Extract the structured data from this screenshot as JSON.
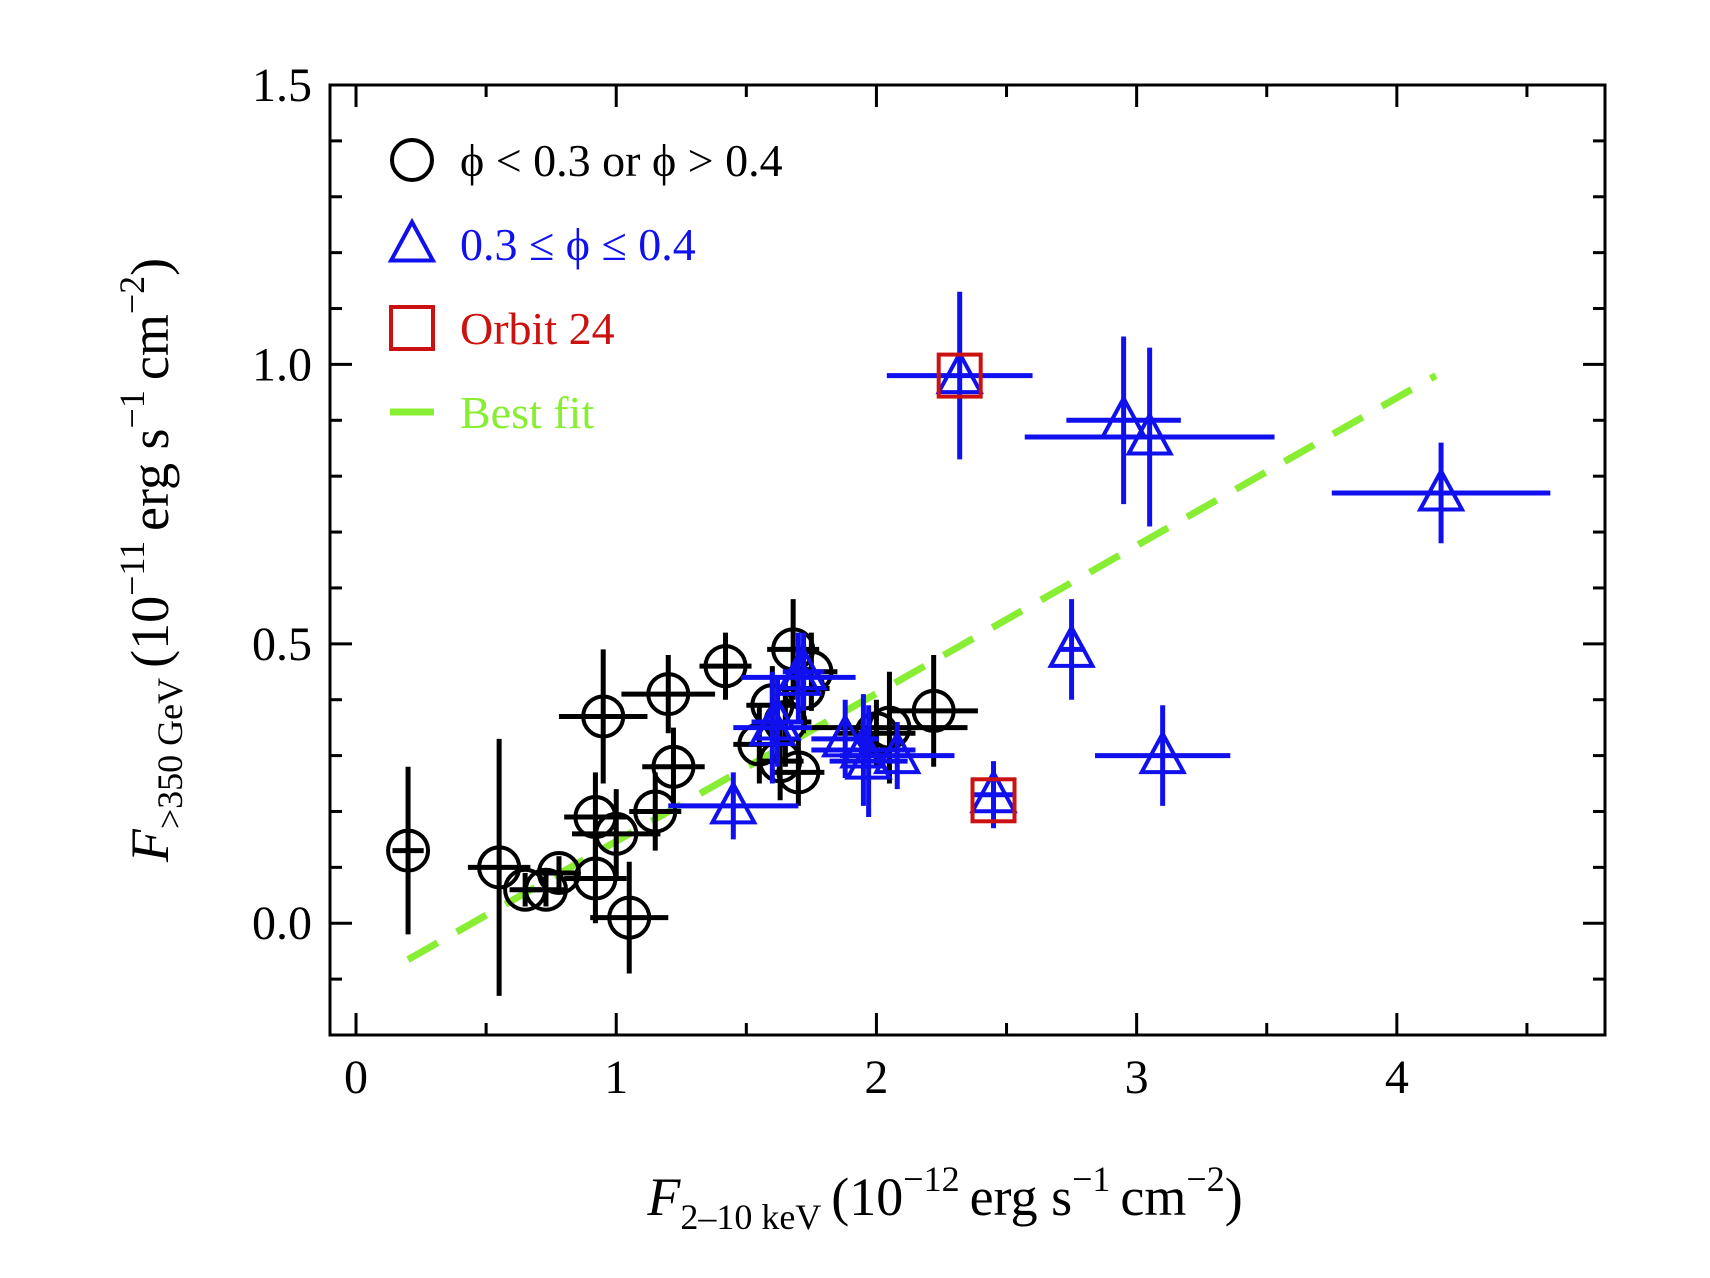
{
  "chart_data": {
    "type": "scatter",
    "xlabel": {
      "symbol": "F",
      "subscript": "2–10 keV",
      "units_prefix": "(10",
      "units_exp": "−12",
      "units_mid": "erg s",
      "units_exp2": "−1",
      "units_mid2": "cm",
      "units_exp3": "−2",
      "units_suffix": ")"
    },
    "ylabel": {
      "symbol": "F",
      "subscript": ">350 GeV",
      "units_prefix": "(10",
      "units_exp": "−11",
      "units_mid": "erg s",
      "units_exp2": "−1",
      "units_mid2": "cm",
      "units_exp3": "−2",
      "units_suffix": ")"
    },
    "xlim": [
      -0.1,
      4.8
    ],
    "ylim": [
      -0.2,
      1.5
    ],
    "xticks": [
      0,
      1,
      2,
      3,
      4
    ],
    "xtick_labels": [
      "0",
      "1",
      "2",
      "3",
      "4"
    ],
    "yticks": [
      0.0,
      0.5,
      1.0,
      1.5
    ],
    "ytick_labels": [
      "0.0",
      "0.5",
      "1.0",
      "1.5"
    ],
    "legend_position": "top-left",
    "legend": [
      {
        "marker": "circle",
        "color": "#000000",
        "text": "ϕ < 0.3 or ϕ > 0.4"
      },
      {
        "marker": "triangle",
        "color": "#1010ee",
        "text": "0.3 ≤ ϕ ≤ 0.4"
      },
      {
        "marker": "square",
        "color": "#cc1111",
        "text": "Orbit 24"
      },
      {
        "marker": "dash",
        "color": "#88ee33",
        "text": "Best fit"
      }
    ],
    "series": [
      {
        "name": "ϕ < 0.3 or ϕ > 0.4",
        "marker": "circle",
        "color": "#000000",
        "points": [
          {
            "x": 0.2,
            "y": 0.13,
            "xerr": 0.06,
            "yerr": 0.15
          },
          {
            "x": 0.55,
            "y": 0.1,
            "xerr": 0.12,
            "yerr": 0.23
          },
          {
            "x": 0.65,
            "y": 0.06,
            "xerr": 0.06,
            "yerr": 0.03
          },
          {
            "x": 0.73,
            "y": 0.06,
            "xerr": 0.08,
            "yerr": 0.03
          },
          {
            "x": 0.78,
            "y": 0.09,
            "xerr": 0.08,
            "yerr": 0.03
          },
          {
            "x": 0.92,
            "y": 0.19,
            "xerr": 0.12,
            "yerr": 0.08
          },
          {
            "x": 0.92,
            "y": 0.08,
            "xerr": 0.12,
            "yerr": 0.08
          },
          {
            "x": 0.95,
            "y": 0.37,
            "xerr": 0.17,
            "yerr": 0.12
          },
          {
            "x": 1.0,
            "y": 0.16,
            "xerr": 0.17,
            "yerr": 0.08
          },
          {
            "x": 1.05,
            "y": 0.01,
            "xerr": 0.15,
            "yerr": 0.1
          },
          {
            "x": 1.15,
            "y": 0.2,
            "xerr": 0.1,
            "yerr": 0.07
          },
          {
            "x": 1.2,
            "y": 0.41,
            "xerr": 0.18,
            "yerr": 0.07
          },
          {
            "x": 1.22,
            "y": 0.28,
            "xerr": 0.12,
            "yerr": 0.07
          },
          {
            "x": 1.42,
            "y": 0.46,
            "xerr": 0.1,
            "yerr": 0.06
          },
          {
            "x": 1.55,
            "y": 0.32,
            "xerr": 0.1,
            "yerr": 0.07
          },
          {
            "x": 1.6,
            "y": 0.39,
            "xerr": 0.1,
            "yerr": 0.07
          },
          {
            "x": 1.63,
            "y": 0.29,
            "xerr": 0.09,
            "yerr": 0.07
          },
          {
            "x": 1.65,
            "y": 0.36,
            "xerr": 0.1,
            "yerr": 0.08
          },
          {
            "x": 1.68,
            "y": 0.49,
            "xerr": 0.1,
            "yerr": 0.09
          },
          {
            "x": 1.7,
            "y": 0.27,
            "xerr": 0.1,
            "yerr": 0.06
          },
          {
            "x": 1.72,
            "y": 0.42,
            "xerr": 0.1,
            "yerr": 0.08
          },
          {
            "x": 1.75,
            "y": 0.45,
            "xerr": 0.1,
            "yerr": 0.07
          },
          {
            "x": 2.0,
            "y": 0.34,
            "xerr": 0.15,
            "yerr": 0.06
          },
          {
            "x": 2.05,
            "y": 0.35,
            "xerr": 0.3,
            "yerr": 0.1
          },
          {
            "x": 2.22,
            "y": 0.38,
            "xerr": 0.17,
            "yerr": 0.1
          }
        ]
      },
      {
        "name": "0.3 ≤ ϕ ≤ 0.4",
        "marker": "triangle",
        "color": "#1010ee",
        "points": [
          {
            "x": 1.45,
            "y": 0.21,
            "xerr": 0.25,
            "yerr": 0.06
          },
          {
            "x": 1.6,
            "y": 0.35,
            "xerr": 0.15,
            "yerr": 0.1
          },
          {
            "x": 1.62,
            "y": 0.36,
            "xerr": 0.1,
            "yerr": 0.08
          },
          {
            "x": 1.7,
            "y": 0.44,
            "xerr": 0.22,
            "yerr": 0.08
          },
          {
            "x": 1.72,
            "y": 0.45,
            "xerr": 0.08,
            "yerr": 0.07
          },
          {
            "x": 1.88,
            "y": 0.33,
            "xerr": 0.13,
            "yerr": 0.07
          },
          {
            "x": 1.95,
            "y": 0.31,
            "xerr": 0.2,
            "yerr": 0.1
          },
          {
            "x": 1.97,
            "y": 0.29,
            "xerr": 0.15,
            "yerr": 0.1
          },
          {
            "x": 2.08,
            "y": 0.3,
            "xerr": 0.22,
            "yerr": 0.06
          },
          {
            "x": 2.32,
            "y": 0.98,
            "xerr": 0.28,
            "yerr": 0.15
          },
          {
            "x": 2.45,
            "y": 0.23,
            "xerr": 0.08,
            "yerr": 0.06
          },
          {
            "x": 2.75,
            "y": 0.49,
            "xerr": 0.05,
            "yerr": 0.09
          },
          {
            "x": 2.95,
            "y": 0.9,
            "xerr": 0.22,
            "yerr": 0.15
          },
          {
            "x": 3.05,
            "y": 0.87,
            "xerr": 0.48,
            "yerr": 0.16
          },
          {
            "x": 3.1,
            "y": 0.3,
            "xerr": 0.26,
            "yerr": 0.09
          },
          {
            "x": 4.17,
            "y": 0.77,
            "xerr": 0.42,
            "yerr": 0.09
          }
        ]
      },
      {
        "name": "Orbit 24",
        "marker": "square",
        "color": "#cc1111",
        "points": [
          {
            "x": 2.32,
            "y": 0.98
          },
          {
            "x": 2.45,
            "y": 0.22
          }
        ]
      }
    ],
    "fit_line": {
      "name": "Best fit",
      "color": "#88ee33",
      "x": [
        0.2,
        4.15
      ],
      "y": [
        -0.065,
        0.98
      ]
    }
  }
}
